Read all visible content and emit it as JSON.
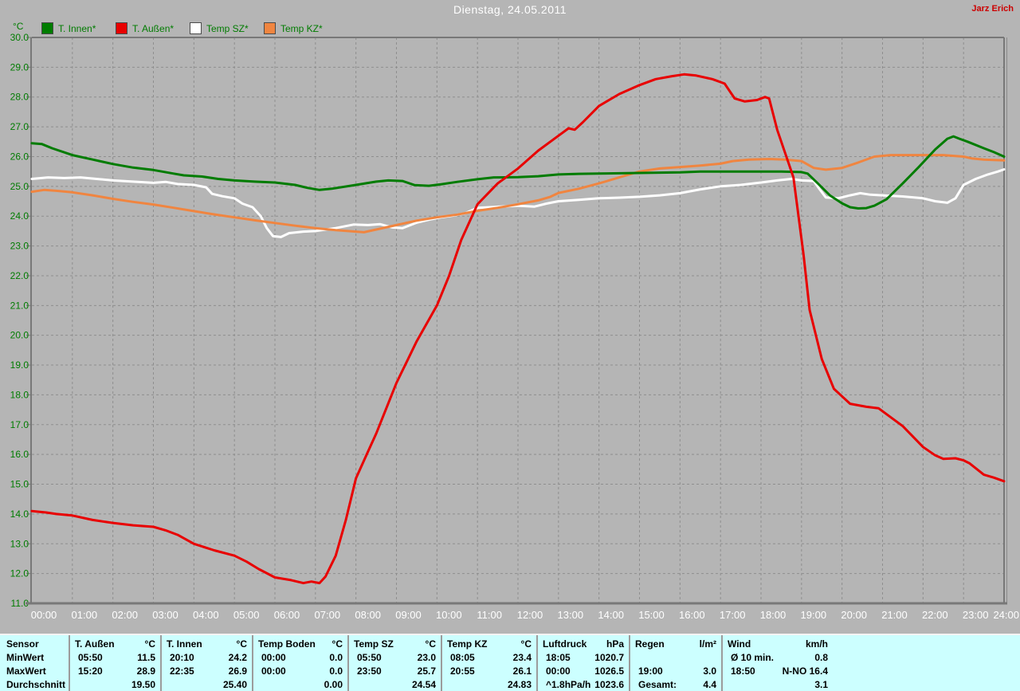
{
  "header": {
    "title": "Dienstag, 24.05.2011",
    "user": "Jarz Erich"
  },
  "legend": [
    {
      "label": "T. Innen*",
      "color": "#007c00"
    },
    {
      "label": "T. Außen*",
      "color": "#e80000"
    },
    {
      "label": "Temp SZ*",
      "color": "#ffffff"
    },
    {
      "label": "Temp KZ*",
      "color": "#f08540"
    }
  ],
  "chart_data": {
    "type": "line",
    "title": "Dienstag, 24.05.2011",
    "xlabel": "",
    "ylabel": "°C",
    "ylim": [
      11,
      30
    ],
    "xlim_hours": [
      0,
      24
    ],
    "grid": "dashed",
    "legend_position": "top-left",
    "ytick_labels": [
      "30.0",
      "29.0",
      "28.0",
      "27.0",
      "26.0",
      "25.0",
      "24.0",
      "23.0",
      "22.0",
      "21.0",
      "20.0",
      "19.0",
      "18.0",
      "17.0",
      "16.0",
      "15.0",
      "14.0",
      "13.0",
      "12.0",
      "11.0"
    ],
    "xtick_labels": [
      "00:00",
      "01:00",
      "02:00",
      "03:00",
      "04:00",
      "05:00",
      "06:00",
      "07:00",
      "08:00",
      "09:00",
      "10:00",
      "11:00",
      "12:00",
      "13:00",
      "14:00",
      "15:00",
      "16:00",
      "17:00",
      "18:00",
      "19:00",
      "20:00",
      "21:00",
      "22:00",
      "23:00",
      "24:00"
    ],
    "series": [
      {
        "name": "T. Innen",
        "color": "#007c00",
        "points": [
          [
            0,
            26.45
          ],
          [
            0.25,
            26.42
          ],
          [
            0.5,
            26.28
          ],
          [
            1,
            26.05
          ],
          [
            1.5,
            25.9
          ],
          [
            2,
            25.75
          ],
          [
            2.5,
            25.63
          ],
          [
            3,
            25.55
          ],
          [
            3.5,
            25.43
          ],
          [
            3.75,
            25.37
          ],
          [
            4.2,
            25.33
          ],
          [
            4.6,
            25.25
          ],
          [
            5,
            25.2
          ],
          [
            5.5,
            25.16
          ],
          [
            6,
            25.13
          ],
          [
            6.5,
            25.05
          ],
          [
            6.8,
            24.95
          ],
          [
            7.1,
            24.88
          ],
          [
            7.4,
            24.92
          ],
          [
            8,
            25.05
          ],
          [
            8.5,
            25.16
          ],
          [
            8.8,
            25.2
          ],
          [
            9.15,
            25.18
          ],
          [
            9.45,
            25.04
          ],
          [
            9.8,
            25.02
          ],
          [
            10.1,
            25.07
          ],
          [
            10.5,
            25.15
          ],
          [
            11,
            25.24
          ],
          [
            11.4,
            25.3
          ],
          [
            12,
            25.31
          ],
          [
            12.5,
            25.34
          ],
          [
            13,
            25.4
          ],
          [
            13.5,
            25.42
          ],
          [
            14,
            25.43
          ],
          [
            15,
            25.45
          ],
          [
            16,
            25.47
          ],
          [
            16.5,
            25.5
          ],
          [
            17.5,
            25.5
          ],
          [
            18.5,
            25.5
          ],
          [
            19,
            25.48
          ],
          [
            19.15,
            25.43
          ],
          [
            19.4,
            25.1
          ],
          [
            19.7,
            24.7
          ],
          [
            20,
            24.43
          ],
          [
            20.2,
            24.3
          ],
          [
            20.4,
            24.26
          ],
          [
            20.6,
            24.27
          ],
          [
            20.8,
            24.35
          ],
          [
            21.1,
            24.57
          ],
          [
            21.5,
            25.1
          ],
          [
            21.9,
            25.66
          ],
          [
            22.3,
            26.24
          ],
          [
            22.6,
            26.6
          ],
          [
            22.75,
            26.68
          ],
          [
            22.9,
            26.6
          ],
          [
            23.1,
            26.5
          ],
          [
            23.5,
            26.28
          ],
          [
            23.75,
            26.15
          ],
          [
            24,
            26.0
          ]
        ]
      },
      {
        "name": "T. Außen",
        "color": "#e80000",
        "points": [
          [
            0,
            14.1
          ],
          [
            0.35,
            14.05
          ],
          [
            0.6,
            14.0
          ],
          [
            1,
            13.95
          ],
          [
            1.5,
            13.8
          ],
          [
            2,
            13.7
          ],
          [
            2.5,
            13.62
          ],
          [
            3,
            13.57
          ],
          [
            3.3,
            13.45
          ],
          [
            3.6,
            13.3
          ],
          [
            4,
            13.0
          ],
          [
            4.5,
            12.78
          ],
          [
            5,
            12.6
          ],
          [
            5.3,
            12.4
          ],
          [
            5.6,
            12.15
          ],
          [
            6,
            11.87
          ],
          [
            6.4,
            11.78
          ],
          [
            6.7,
            11.68
          ],
          [
            6.9,
            11.73
          ],
          [
            7.1,
            11.68
          ],
          [
            7.25,
            11.9
          ],
          [
            7.5,
            12.6
          ],
          [
            7.75,
            13.8
          ],
          [
            8,
            15.2
          ],
          [
            8.3,
            16.1
          ],
          [
            8.5,
            16.7
          ],
          [
            9,
            18.4
          ],
          [
            9.5,
            19.8
          ],
          [
            10,
            21.0
          ],
          [
            10.3,
            22.0
          ],
          [
            10.6,
            23.2
          ],
          [
            11,
            24.4
          ],
          [
            11.5,
            25.1
          ],
          [
            12,
            25.6
          ],
          [
            12.5,
            26.2
          ],
          [
            13,
            26.7
          ],
          [
            13.25,
            26.95
          ],
          [
            13.4,
            26.9
          ],
          [
            13.6,
            27.15
          ],
          [
            14,
            27.7
          ],
          [
            14.5,
            28.1
          ],
          [
            15,
            28.4
          ],
          [
            15.4,
            28.6
          ],
          [
            15.8,
            28.7
          ],
          [
            16.1,
            28.76
          ],
          [
            16.4,
            28.72
          ],
          [
            16.8,
            28.6
          ],
          [
            17.1,
            28.45
          ],
          [
            17.35,
            27.95
          ],
          [
            17.6,
            27.85
          ],
          [
            17.9,
            27.9
          ],
          [
            18.1,
            28.0
          ],
          [
            18.2,
            27.95
          ],
          [
            18.4,
            26.9
          ],
          [
            18.6,
            26.1
          ],
          [
            18.8,
            25.3
          ],
          [
            19.05,
            22.7
          ],
          [
            19.2,
            20.85
          ],
          [
            19.5,
            19.2
          ],
          [
            19.8,
            18.2
          ],
          [
            20,
            17.95
          ],
          [
            20.2,
            17.7
          ],
          [
            20.6,
            17.6
          ],
          [
            20.9,
            17.55
          ],
          [
            21.05,
            17.4
          ],
          [
            21.5,
            16.95
          ],
          [
            22,
            16.25
          ],
          [
            22.3,
            15.97
          ],
          [
            22.5,
            15.85
          ],
          [
            22.8,
            15.87
          ],
          [
            23,
            15.8
          ],
          [
            23.15,
            15.7
          ],
          [
            23.5,
            15.32
          ],
          [
            23.75,
            15.22
          ],
          [
            24,
            15.1
          ]
        ]
      },
      {
        "name": "Temp SZ",
        "color": "#ffffff",
        "points": [
          [
            0,
            25.25
          ],
          [
            0.4,
            25.3
          ],
          [
            0.8,
            25.28
          ],
          [
            1.2,
            25.3
          ],
          [
            1.6,
            25.25
          ],
          [
            2,
            25.2
          ],
          [
            2.5,
            25.16
          ],
          [
            3,
            25.12
          ],
          [
            3.3,
            25.15
          ],
          [
            3.6,
            25.08
          ],
          [
            4,
            25.05
          ],
          [
            4.3,
            24.97
          ],
          [
            4.45,
            24.75
          ],
          [
            4.7,
            24.67
          ],
          [
            5,
            24.6
          ],
          [
            5.2,
            24.42
          ],
          [
            5.45,
            24.3
          ],
          [
            5.65,
            24.0
          ],
          [
            5.8,
            23.6
          ],
          [
            5.95,
            23.33
          ],
          [
            6.15,
            23.3
          ],
          [
            6.35,
            23.43
          ],
          [
            6.7,
            23.48
          ],
          [
            7,
            23.5
          ],
          [
            7.5,
            23.6
          ],
          [
            7.95,
            23.72
          ],
          [
            8.3,
            23.7
          ],
          [
            8.6,
            23.73
          ],
          [
            8.9,
            23.62
          ],
          [
            9.15,
            23.6
          ],
          [
            9.5,
            23.78
          ],
          [
            9.8,
            23.88
          ],
          [
            10.1,
            23.96
          ],
          [
            10.4,
            24.02
          ],
          [
            10.7,
            24.1
          ],
          [
            11,
            24.28
          ],
          [
            11.3,
            24.3
          ],
          [
            11.7,
            24.33
          ],
          [
            12,
            24.35
          ],
          [
            12.4,
            24.32
          ],
          [
            12.7,
            24.42
          ],
          [
            13,
            24.5
          ],
          [
            13.5,
            24.55
          ],
          [
            14,
            24.6
          ],
          [
            14.5,
            24.62
          ],
          [
            15,
            24.65
          ],
          [
            15.5,
            24.7
          ],
          [
            16,
            24.77
          ],
          [
            16.5,
            24.9
          ],
          [
            17,
            25.0
          ],
          [
            17.5,
            25.05
          ],
          [
            18,
            25.13
          ],
          [
            18.4,
            25.2
          ],
          [
            18.75,
            25.25
          ],
          [
            19,
            25.2
          ],
          [
            19.3,
            25.18
          ],
          [
            19.45,
            24.9
          ],
          [
            19.6,
            24.63
          ],
          [
            19.9,
            24.6
          ],
          [
            20.2,
            24.7
          ],
          [
            20.45,
            24.77
          ],
          [
            20.7,
            24.72
          ],
          [
            21,
            24.7
          ],
          [
            21.5,
            24.66
          ],
          [
            22,
            24.6
          ],
          [
            22.3,
            24.5
          ],
          [
            22.6,
            24.45
          ],
          [
            22.8,
            24.6
          ],
          [
            23,
            25.05
          ],
          [
            23.3,
            25.25
          ],
          [
            23.6,
            25.4
          ],
          [
            23.85,
            25.5
          ],
          [
            24,
            25.57
          ]
        ]
      },
      {
        "name": "Temp KZ",
        "color": "#f08540",
        "points": [
          [
            0,
            24.82
          ],
          [
            0.3,
            24.88
          ],
          [
            0.6,
            24.85
          ],
          [
            1,
            24.8
          ],
          [
            1.5,
            24.7
          ],
          [
            2,
            24.58
          ],
          [
            2.5,
            24.48
          ],
          [
            3,
            24.39
          ],
          [
            3.5,
            24.28
          ],
          [
            4,
            24.17
          ],
          [
            4.5,
            24.06
          ],
          [
            5,
            23.96
          ],
          [
            5.5,
            23.86
          ],
          [
            6,
            23.77
          ],
          [
            6.5,
            23.68
          ],
          [
            7,
            23.6
          ],
          [
            7.5,
            23.53
          ],
          [
            8,
            23.48
          ],
          [
            8.2,
            23.46
          ],
          [
            8.5,
            23.55
          ],
          [
            9,
            23.7
          ],
          [
            9.5,
            23.85
          ],
          [
            10,
            23.96
          ],
          [
            10.5,
            24.05
          ],
          [
            11,
            24.18
          ],
          [
            11.5,
            24.28
          ],
          [
            12,
            24.4
          ],
          [
            12.5,
            24.53
          ],
          [
            12.8,
            24.65
          ],
          [
            13,
            24.78
          ],
          [
            13.5,
            24.92
          ],
          [
            14,
            25.1
          ],
          [
            14.5,
            25.3
          ],
          [
            15,
            25.5
          ],
          [
            15.5,
            25.6
          ],
          [
            16,
            25.65
          ],
          [
            16.5,
            25.7
          ],
          [
            17,
            25.76
          ],
          [
            17.3,
            25.85
          ],
          [
            17.7,
            25.9
          ],
          [
            18.2,
            25.92
          ],
          [
            18.6,
            25.9
          ],
          [
            19,
            25.85
          ],
          [
            19.3,
            25.62
          ],
          [
            19.6,
            25.56
          ],
          [
            20,
            25.62
          ],
          [
            20.4,
            25.8
          ],
          [
            20.8,
            26.0
          ],
          [
            21.2,
            26.05
          ],
          [
            22,
            26.05
          ],
          [
            22.5,
            26.05
          ],
          [
            22.8,
            26.02
          ],
          [
            23,
            26.0
          ],
          [
            23.2,
            25.94
          ],
          [
            23.5,
            25.9
          ],
          [
            24,
            25.87
          ]
        ]
      }
    ]
  },
  "stats_table": {
    "header_label": "Sensor",
    "row_labels": [
      "MinWert",
      "MaxWert",
      "Durchschnitt"
    ],
    "columns": [
      {
        "name": "T. Außen",
        "unit": "°C",
        "rows": [
          [
            "05:50",
            "11.5"
          ],
          [
            "15:20",
            "28.9"
          ],
          [
            "",
            "19.50"
          ]
        ]
      },
      {
        "name": "T. Innen",
        "unit": "°C",
        "rows": [
          [
            "20:10",
            "24.2"
          ],
          [
            "22:35",
            "26.9"
          ],
          [
            "",
            "25.40"
          ]
        ]
      },
      {
        "name": "Temp Boden",
        "unit": "°C",
        "rows": [
          [
            "00:00",
            "0.0"
          ],
          [
            "00:00",
            "0.0"
          ],
          [
            "",
            "0.00"
          ]
        ]
      },
      {
        "name": "Temp SZ",
        "unit": "°C",
        "rows": [
          [
            "05:50",
            "23.0"
          ],
          [
            "23:50",
            "25.7"
          ],
          [
            "",
            "24.54"
          ]
        ]
      },
      {
        "name": "Temp KZ",
        "unit": "°C",
        "rows": [
          [
            "08:05",
            "23.4"
          ],
          [
            "20:55",
            "26.1"
          ],
          [
            "",
            "24.83"
          ]
        ]
      },
      {
        "name": "Luftdruck",
        "unit": "hPa",
        "rows": [
          [
            "18:05",
            "1020.7"
          ],
          [
            "00:00",
            "1026.5"
          ],
          [
            "^1.8hPa/h",
            "1023.6"
          ]
        ]
      },
      {
        "name": "Regen",
        "unit": "l/m²",
        "rows": [
          [
            "",
            ""
          ],
          [
            "19:00",
            "3.0"
          ],
          [
            "Gesamt:",
            "4.4"
          ]
        ]
      },
      {
        "name": "Wind",
        "unit": "km/h",
        "rows": [
          [
            "Ø 10 min.",
            "0.8"
          ],
          [
            "18:50",
            "N-NO 16.4"
          ],
          [
            "",
            "3.1"
          ]
        ]
      }
    ]
  }
}
